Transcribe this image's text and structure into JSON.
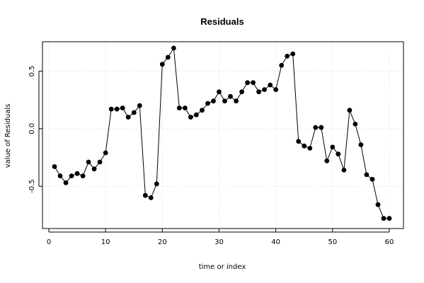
{
  "chart_data": {
    "type": "line",
    "title": "Residuals",
    "xlabel": "time or index",
    "ylabel": "value of Residuals",
    "xlim": [
      0,
      60
    ],
    "ylim": [
      -0.8,
      0.7
    ],
    "xticks": [
      0,
      10,
      20,
      30,
      40,
      50,
      60
    ],
    "yticks": [
      -0.5,
      0.0,
      0.5
    ],
    "ytick_labels": [
      "-0.5",
      "0.0",
      "0.5"
    ],
    "grid": true,
    "marker": "filled-circle",
    "color": "#000000",
    "series": [
      {
        "x": [
          1,
          2,
          3,
          4,
          5,
          6,
          7,
          8,
          9,
          10,
          11,
          12,
          13,
          14,
          15,
          16,
          17,
          18,
          19,
          20,
          21,
          22,
          23,
          24,
          25,
          26,
          27,
          28,
          29,
          30,
          31,
          32,
          33,
          34,
          35,
          36,
          37,
          38,
          39,
          40,
          41,
          42,
          43,
          44,
          45,
          46,
          47,
          48,
          49,
          50,
          51,
          52,
          53,
          54,
          55,
          56,
          57,
          58,
          59,
          60
        ],
        "values": [
          -0.33,
          -0.41,
          -0.47,
          -0.41,
          -0.39,
          -0.41,
          -0.29,
          -0.35,
          -0.29,
          -0.21,
          0.17,
          0.17,
          0.18,
          0.1,
          0.14,
          0.2,
          -0.58,
          -0.6,
          -0.48,
          0.56,
          0.62,
          0.7,
          0.18,
          0.18,
          0.1,
          0.12,
          0.16,
          0.22,
          0.24,
          0.32,
          0.24,
          0.28,
          0.24,
          0.32,
          0.4,
          0.4,
          0.32,
          0.34,
          0.38,
          0.34,
          0.55,
          0.63,
          0.65,
          -0.11,
          -0.15,
          -0.17,
          0.01,
          0.01,
          -0.28,
          -0.16,
          -0.22,
          -0.36,
          0.16,
          0.04,
          -0.14,
          -0.4,
          -0.44,
          -0.66,
          -0.78,
          -0.78
        ]
      }
    ]
  }
}
